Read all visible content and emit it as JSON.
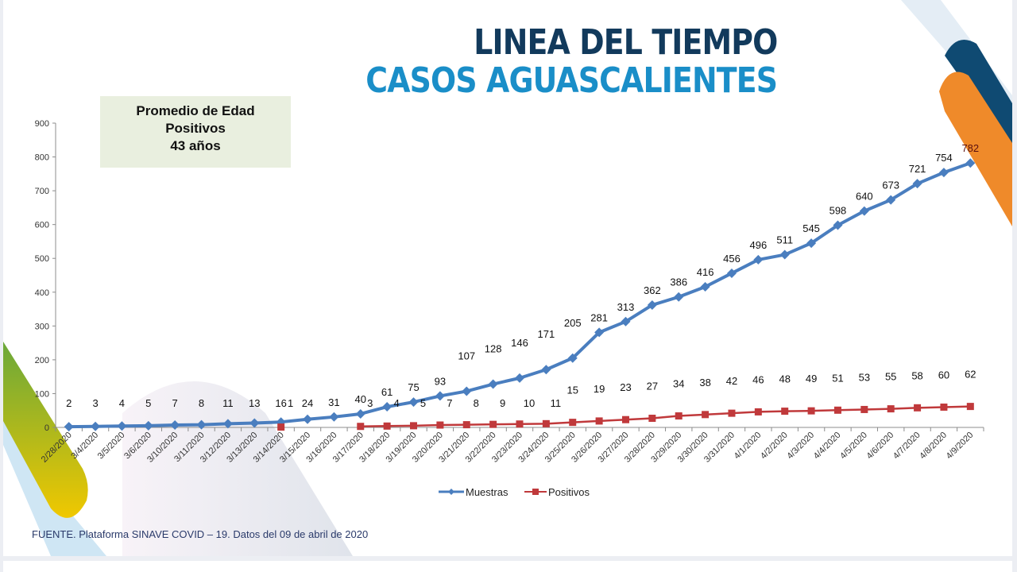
{
  "header": {
    "title_line1": "LINEA DEL TIEMPO",
    "title_line2": "CASOS AGUASCALIENTES"
  },
  "info_box": {
    "line1": "Promedio de Edad",
    "line2": "Positivos",
    "line3": "43 años"
  },
  "footer": {
    "source": "FUENTE. Plataforma SINAVE COVID – 19. Datos del 09 de abril de 2020"
  },
  "colors": {
    "muestras": "#4a7ebf",
    "positivos": "#c0393b",
    "title_dark": "#123a5c",
    "title_light": "#1a8ec8"
  },
  "chart_data": {
    "type": "line",
    "title": "LINEA DEL TIEMPO CASOS AGUASCALIENTES",
    "xlabel": "",
    "ylabel": "",
    "ylim": [
      0,
      900
    ],
    "yticks": [
      "0",
      "100",
      "200",
      "300",
      "400",
      "500",
      "600",
      "700",
      "800",
      "900"
    ],
    "grid": false,
    "legend": "bottom",
    "categories": [
      "2/28/2020",
      "3/4/2020",
      "3/5/2020",
      "3/6/2020",
      "3/10/2020",
      "3/11/2020",
      "3/12/2020",
      "3/13/2020",
      "3/14/2020",
      "3/15/2020",
      "3/16/2020",
      "3/17/2020",
      "3/18/2020",
      "3/19/2020",
      "3/20/2020",
      "3/21/2020",
      "3/22/2020",
      "3/23/2020",
      "3/24/2020",
      "3/25/2020",
      "3/26/2020",
      "3/27/2020",
      "3/28/2020",
      "3/29/2020",
      "3/30/2020",
      "3/31/2020",
      "4/1/2020",
      "4/2/2020",
      "4/3/2020",
      "4/4/2020",
      "4/5/2020",
      "4/6/2020",
      "4/7/2020",
      "4/8/2020",
      "4/9/2020"
    ],
    "series": [
      {
        "name": "Muestras",
        "values": [
          2,
          3,
          4,
          5,
          7,
          8,
          11,
          13,
          16,
          24,
          31,
          40,
          61,
          75,
          93,
          107,
          128,
          146,
          171,
          205,
          281,
          313,
          362,
          386,
          416,
          456,
          496,
          511,
          545,
          598,
          640,
          673,
          721,
          754,
          782
        ]
      },
      {
        "name": "Positivos",
        "values": [
          null,
          null,
          null,
          null,
          null,
          null,
          null,
          null,
          1,
          null,
          null,
          3,
          4,
          5,
          7,
          8,
          9,
          10,
          11,
          15,
          19,
          23,
          27,
          34,
          38,
          42,
          46,
          48,
          49,
          51,
          53,
          55,
          58,
          60,
          62
        ]
      }
    ]
  }
}
